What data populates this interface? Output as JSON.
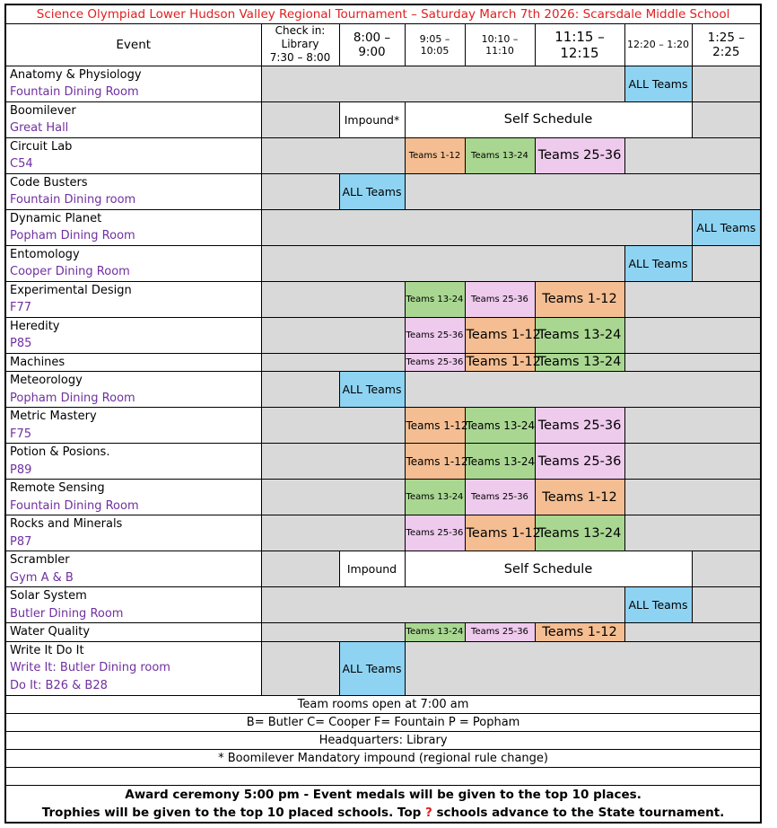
{
  "palette": {
    "red": "#E02020",
    "purple": "#7030A0",
    "gray": "#D9D9D9",
    "blue": "#8FD3F2",
    "orange": "#F4BE92",
    "green": "#A9D792",
    "pink": "#EECAED"
  },
  "title": "Science Olympiad Lower Hudson Valley Regional Tournament – Saturday March 7th 2026: Scarsdale Middle School",
  "header": {
    "event": "Event",
    "checkin_lines": [
      "Check in:",
      "Library",
      "7:30 – 8:00"
    ],
    "times": [
      "8:00 – 9:00",
      "9:05 – 10:05",
      "10:10 – 11:10",
      "11:15 –12:15",
      "12:20 – 1:20",
      "1:25 – 2:25"
    ]
  },
  "schedule": {
    "rows": [
      {
        "name": "Anatomy & Physiology",
        "rooms": [
          "Fountain Dining Room"
        ],
        "cells": [
          {
            "bg": "gray",
            "span": 5
          },
          {
            "bg": "blue",
            "text": "ALL Teams"
          },
          {
            "bg": "gray",
            "span": 1
          }
        ]
      },
      {
        "name": "Boomilever",
        "rooms": [
          "Great Hall"
        ],
        "cells": [
          {
            "bg": "gray",
            "span": 1
          },
          {
            "bg": "white",
            "text": "Impound*"
          },
          {
            "bg": "white",
            "text": "Self Schedule",
            "span": 4,
            "size": "lg"
          },
          {
            "bg": "gray",
            "span": 1
          }
        ]
      },
      {
        "name": "Circuit Lab",
        "rooms": [
          "C54"
        ],
        "cells": [
          {
            "bg": "gray",
            "span": 2
          },
          {
            "bg": "orange",
            "text": "Teams 1-12",
            "size": "sm"
          },
          {
            "bg": "green",
            "text": "Teams 13-24",
            "size": "sm"
          },
          {
            "bg": "pink",
            "text": "Teams 25-36",
            "size": "lg"
          },
          {
            "bg": "gray",
            "span": 2
          }
        ]
      },
      {
        "name": "Code Busters",
        "rooms": [
          "Fountain Dining room"
        ],
        "cells": [
          {
            "bg": "gray",
            "span": 1
          },
          {
            "bg": "blue",
            "text": "ALL Teams"
          },
          {
            "bg": "gray",
            "span": 5
          }
        ]
      },
      {
        "name": "Dynamic Planet",
        "rooms": [
          "Popham Dining Room"
        ],
        "cells": [
          {
            "bg": "gray",
            "span": 6
          },
          {
            "bg": "blue",
            "text": "ALL Teams"
          }
        ]
      },
      {
        "name": "Entomology",
        "rooms": [
          "Cooper Dining Room"
        ],
        "cells": [
          {
            "bg": "gray",
            "span": 5
          },
          {
            "bg": "blue",
            "text": "ALL Teams"
          },
          {
            "bg": "gray",
            "span": 1
          }
        ]
      },
      {
        "name": "Experimental Design",
        "rooms": [
          "F77"
        ],
        "cells": [
          {
            "bg": "gray",
            "span": 2
          },
          {
            "bg": "green",
            "text": "Teams 13-24",
            "size": "sm"
          },
          {
            "bg": "pink",
            "text": "Teams 25-36",
            "size": "sm"
          },
          {
            "bg": "orange",
            "text": "Teams 1-12",
            "size": "lg"
          },
          {
            "bg": "gray",
            "span": 2
          }
        ]
      },
      {
        "name": "Heredity",
        "rooms": [
          "P85"
        ],
        "cells": [
          {
            "bg": "gray",
            "span": 2
          },
          {
            "bg": "pink",
            "text": "Teams 25-36",
            "size": "sm"
          },
          {
            "bg": "orange",
            "text": "Teams 1-12",
            "size": "lg"
          },
          {
            "bg": "green",
            "text": "Teams 13-24",
            "size": "lg"
          },
          {
            "bg": "gray",
            "span": 2
          }
        ]
      },
      {
        "name": "Machines",
        "rooms": [],
        "cells": [
          {
            "bg": "gray",
            "span": 2
          },
          {
            "bg": "pink",
            "text": "Teams 25-36",
            "size": "sm"
          },
          {
            "bg": "orange",
            "text": "Teams 1-12",
            "size": "lg"
          },
          {
            "bg": "green",
            "text": "Teams 13-24",
            "size": "lg"
          },
          {
            "bg": "gray",
            "span": 2
          }
        ]
      },
      {
        "name": "Meteorology",
        "rooms": [
          "Popham Dining Room"
        ],
        "cells": [
          {
            "bg": "gray",
            "span": 1
          },
          {
            "bg": "blue",
            "text": "ALL Teams"
          },
          {
            "bg": "gray",
            "span": 5
          }
        ]
      },
      {
        "name": "Metric Mastery",
        "rooms": [
          "F75"
        ],
        "cells": [
          {
            "bg": "gray",
            "span": 2
          },
          {
            "bg": "orange",
            "text": "Teams 1-12",
            "size": "md"
          },
          {
            "bg": "green",
            "text": "Teams 13-24",
            "size": "md"
          },
          {
            "bg": "pink",
            "text": "Teams 25-36",
            "size": "lg"
          },
          {
            "bg": "gray",
            "span": 2
          }
        ]
      },
      {
        "name": "Potion  & Posions.",
        "rooms": [
          "P89"
        ],
        "cells": [
          {
            "bg": "gray",
            "span": 2
          },
          {
            "bg": "orange",
            "text": "Teams 1-12",
            "size": "md"
          },
          {
            "bg": "green",
            "text": "Teams 13-24",
            "size": "md"
          },
          {
            "bg": "pink",
            "text": "Teams 25-36",
            "size": "lg"
          },
          {
            "bg": "gray",
            "span": 2
          }
        ]
      },
      {
        "name": "Remote Sensing",
        "rooms": [
          "Fountain Dining Room"
        ],
        "cells": [
          {
            "bg": "gray",
            "span": 2
          },
          {
            "bg": "green",
            "text": "Teams 13-24",
            "size": "sm"
          },
          {
            "bg": "pink",
            "text": "Teams 25-36",
            "size": "sm"
          },
          {
            "bg": "orange",
            "text": "Teams 1-12",
            "size": "lg"
          },
          {
            "bg": "gray",
            "span": 2
          }
        ]
      },
      {
        "name": "Rocks and Minerals",
        "rooms": [
          "P87"
        ],
        "cells": [
          {
            "bg": "gray",
            "span": 2
          },
          {
            "bg": "pink",
            "text": "Teams 25-36",
            "size": "sm"
          },
          {
            "bg": "orange",
            "text": "Teams 1-12",
            "size": "lg"
          },
          {
            "bg": "green",
            "text": "Teams 13-24",
            "size": "lg"
          },
          {
            "bg": "gray",
            "span": 2
          }
        ]
      },
      {
        "name": "Scrambler",
        "rooms": [
          "Gym A & B"
        ],
        "cells": [
          {
            "bg": "gray",
            "span": 1
          },
          {
            "bg": "white",
            "text": "Impound"
          },
          {
            "bg": "white",
            "text": "Self Schedule",
            "span": 4,
            "size": "lg"
          },
          {
            "bg": "gray",
            "span": 1
          }
        ]
      },
      {
        "name": "Solar System",
        "rooms": [
          "Butler Dining Room"
        ],
        "cells": [
          {
            "bg": "gray",
            "span": 5
          },
          {
            "bg": "blue",
            "text": "ALL Teams"
          },
          {
            "bg": "gray",
            "span": 1
          }
        ]
      },
      {
        "name": "Water Quality",
        "rooms": [],
        "cells": [
          {
            "bg": "gray",
            "span": 2
          },
          {
            "bg": "green",
            "text": "Teams 13-24",
            "size": "sm"
          },
          {
            "bg": "pink",
            "text": "Teams 25-36",
            "size": "sm"
          },
          {
            "bg": "orange",
            "text": "Teams 1-12",
            "size": "lg"
          },
          {
            "bg": "gray",
            "span": 2
          }
        ]
      },
      {
        "name": "Write It Do It",
        "rooms": [
          "Write It: Butler Dining room",
          "Do It: B26 & B28"
        ],
        "cells": [
          {
            "bg": "gray",
            "span": 1
          },
          {
            "bg": "blue",
            "text": "ALL Teams"
          },
          {
            "bg": "gray",
            "span": 5
          }
        ]
      }
    ]
  },
  "footer": {
    "notes": [
      "Team rooms open at 7:00 am",
      "B= Butler C= Cooper F= Fountain P = Popham",
      "Headquarters: Library",
      "* Boomilever Mandatory impound (regional rule change)"
    ],
    "award_line1": "Award ceremony 5:00 pm - Event medals will be given to the top 10 places.",
    "award_line2_parts": [
      "Trophies will be given to the top 10 placed schools. Top ",
      "?",
      " schools advance to the State tournament."
    ]
  }
}
